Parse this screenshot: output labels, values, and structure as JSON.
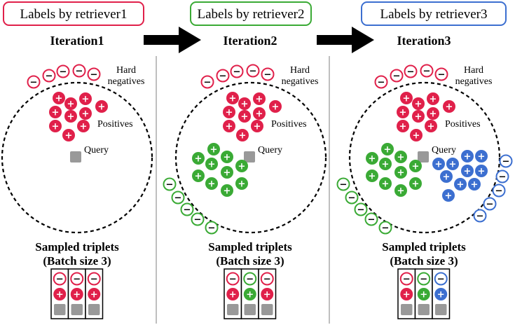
{
  "colors": {
    "retriever1": "#e0204a",
    "retriever2": "#3aaa35",
    "retriever3": "#3c6fd0",
    "query": "#999999",
    "divider": "#aaaaaa"
  },
  "panels": [
    {
      "header": "Labels by retriever1",
      "title": "Iteration1",
      "hard_negatives": "Hard",
      "hard_negatives2": "negatives",
      "positives": "Positives",
      "query": "Query",
      "sampled": "Sampled triplets",
      "batch": "(Batch size 3)",
      "triplet_colors": [
        "retriever1",
        "retriever1",
        "retriever1"
      ]
    },
    {
      "header": "Labels by retriever2",
      "title": "Iteration2",
      "hard_negatives": "Hard",
      "hard_negatives2": "negatives",
      "positives": "Positives",
      "query": "Query",
      "sampled": "Sampled triplets",
      "batch": "(Batch size 3)",
      "triplet_colors": [
        "retriever1",
        "retriever2",
        "retriever1"
      ]
    },
    {
      "header": "Labels by retriever3",
      "title": "Iteration3",
      "hard_negatives": "Hard",
      "hard_negatives2": "negatives",
      "positives": "Positives",
      "query": "Query",
      "sampled": "Sampled triplets",
      "batch": "(Batch size 3)",
      "triplet_colors": [
        "retriever1",
        "retriever2",
        "retriever3"
      ]
    }
  ],
  "symbols": {
    "plus": "+",
    "minus": "−"
  }
}
